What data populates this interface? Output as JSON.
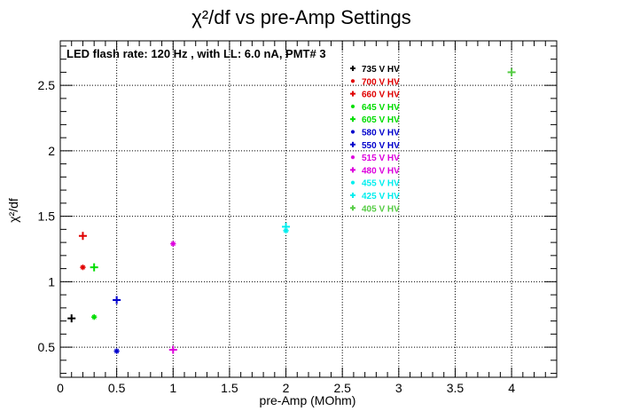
{
  "chart_data": {
    "type": "scatter",
    "title": "χ²/df vs pre-Amp Settings",
    "xlabel": "pre-Amp (MOhm)",
    "ylabel": "χ²/df",
    "annotation": "LED flash rate: 120 Hz , with LL: 6.0 nA, PMT# 3",
    "xlim": [
      0,
      4.4
    ],
    "ylim": [
      0.27,
      2.84
    ],
    "xticks": [
      0,
      0.5,
      1,
      1.5,
      2,
      2.5,
      3,
      3.5,
      4
    ],
    "xtick_labels": [
      "0",
      "0.5",
      "1",
      "1.5",
      "2",
      "2.5",
      "3",
      "3.5",
      "4"
    ],
    "yticks": [
      0.5,
      1,
      1.5,
      2,
      2.5
    ],
    "ytick_labels": [
      "0.5",
      "1",
      "1.5",
      "2",
      "2.5"
    ],
    "grid": true,
    "legend_position": "top-right",
    "series": [
      {
        "name": "735 V HV",
        "color": "#000000",
        "marker": "+",
        "points": [
          [
            0.1,
            0.72
          ]
        ]
      },
      {
        "name": "700 V HV",
        "color": "#e00000",
        "marker": "*",
        "points": [
          [
            0.2,
            1.11
          ]
        ]
      },
      {
        "name": "660 V HV",
        "color": "#e00000",
        "marker": "+",
        "points": [
          [
            0.2,
            1.35
          ]
        ]
      },
      {
        "name": "645 V HV",
        "color": "#00dd00",
        "marker": "*",
        "points": [
          [
            0.3,
            0.73
          ]
        ]
      },
      {
        "name": "605 V HV",
        "color": "#00dd00",
        "marker": "+",
        "points": [
          [
            0.3,
            1.11
          ]
        ]
      },
      {
        "name": "580 V HV",
        "color": "#0000cc",
        "marker": "*",
        "points": [
          [
            0.5,
            0.47
          ]
        ]
      },
      {
        "name": "550 V HV",
        "color": "#0000cc",
        "marker": "+",
        "points": [
          [
            0.5,
            0.86
          ]
        ]
      },
      {
        "name": "515 V HV",
        "color": "#dd00dd",
        "marker": "*",
        "points": [
          [
            1.0,
            1.29
          ]
        ]
      },
      {
        "name": "480 V HV",
        "color": "#dd00dd",
        "marker": "+",
        "points": [
          [
            1.0,
            0.48
          ]
        ]
      },
      {
        "name": "455 V HV",
        "color": "#00eeee",
        "marker": "*",
        "points": [
          [
            2.0,
            1.39
          ]
        ]
      },
      {
        "name": "425 V HV",
        "color": "#00eeee",
        "marker": "+",
        "points": [
          [
            2.0,
            1.42
          ]
        ]
      },
      {
        "name": "405 V HV",
        "color": "#55cc44",
        "marker": "+",
        "points": [
          [
            4.0,
            2.6
          ]
        ]
      }
    ]
  }
}
